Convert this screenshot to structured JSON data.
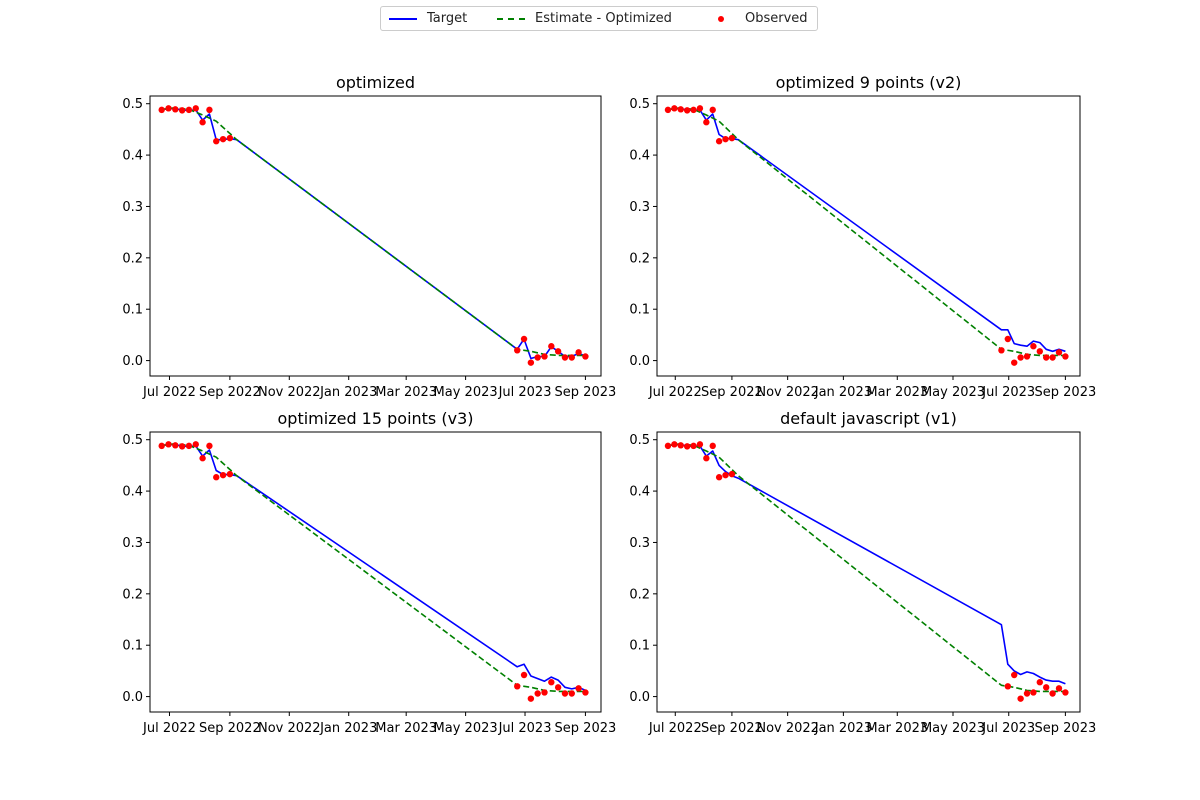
{
  "legend": {
    "target_label": "Target",
    "estimate_label": "Estimate - Optimized",
    "observed_label": "Observed"
  },
  "colors": {
    "target": "#0000ff",
    "estimate": "#008000",
    "observed": "#ff0000"
  },
  "chart_data": [
    {
      "type": "line",
      "title": "optimized",
      "x_tick_labels": [
        "Jul 2022",
        "Sep 2022",
        "Nov 2022",
        "Jan 2023",
        "Mar 2023",
        "May 2023",
        "Jul 2023",
        "Sep 2023"
      ],
      "y_tick_labels": [
        "0.0",
        "0.1",
        "0.2",
        "0.3",
        "0.4",
        "0.5"
      ],
      "ylim": [
        -0.03,
        0.515
      ],
      "grid": false,
      "legend_position": "top-center",
      "series": [
        {
          "name": "Target",
          "style": "solid",
          "color": "#0000ff",
          "x": [
            "2022-06-23",
            "2022-06-30",
            "2022-07-07",
            "2022-07-14",
            "2022-07-21",
            "2022-07-28",
            "2022-08-04",
            "2022-08-11",
            "2022-08-18",
            "2022-08-25",
            "2022-09-01",
            "2022-09-08",
            "2023-06-23",
            "2023-06-30",
            "2023-07-07",
            "2023-07-14",
            "2023-07-21",
            "2023-07-28",
            "2023-08-04",
            "2023-08-11",
            "2023-08-18",
            "2023-08-25",
            "2023-09-01"
          ],
          "y": [
            0.488,
            0.491,
            0.49,
            0.488,
            0.487,
            0.488,
            0.468,
            0.48,
            0.43,
            0.43,
            0.432,
            0.43,
            0.022,
            0.042,
            0.004,
            0.008,
            0.008,
            0.027,
            0.018,
            0.008,
            0.008,
            0.014,
            0.009
          ]
        },
        {
          "name": "Estimate - Optimized",
          "style": "dashed",
          "color": "#008000",
          "x": [
            "2022-06-23",
            "2022-07-07",
            "2022-07-21",
            "2022-08-04",
            "2022-08-18",
            "2022-09-01",
            "2022-09-08",
            "2023-06-23",
            "2023-07-07",
            "2023-07-21",
            "2023-08-04",
            "2023-08-18",
            "2023-09-01"
          ],
          "y": [
            0.489,
            0.492,
            0.489,
            0.478,
            0.466,
            0.442,
            0.43,
            0.022,
            0.018,
            0.012,
            0.01,
            0.01,
            0.01
          ]
        },
        {
          "name": "Observed",
          "style": "points",
          "color": "#ff0000",
          "x": [
            "2022-06-23",
            "2022-06-30",
            "2022-07-07",
            "2022-07-14",
            "2022-07-21",
            "2022-07-28",
            "2022-08-04",
            "2022-08-11",
            "2022-08-18",
            "2022-08-25",
            "2022-09-01",
            "2023-06-23",
            "2023-06-30",
            "2023-07-07",
            "2023-07-14",
            "2023-07-21",
            "2023-07-28",
            "2023-08-04",
            "2023-08-11",
            "2023-08-18",
            "2023-08-25",
            "2023-09-01"
          ],
          "y": [
            0.488,
            0.491,
            0.489,
            0.487,
            0.488,
            0.491,
            0.464,
            0.488,
            0.427,
            0.431,
            0.433,
            0.02,
            0.042,
            -0.004,
            0.006,
            0.008,
            0.028,
            0.018,
            0.006,
            0.006,
            0.016,
            0.008
          ]
        }
      ]
    },
    {
      "type": "line",
      "title": "optimized 9 points (v2)",
      "x_tick_labels": [
        "Jul 2022",
        "Sep 2022",
        "Nov 2022",
        "Jan 2023",
        "Mar 2023",
        "May 2023",
        "Jul 2023",
        "Sep 2023"
      ],
      "y_tick_labels": [
        "0.0",
        "0.1",
        "0.2",
        "0.3",
        "0.4",
        "0.5"
      ],
      "ylim": [
        -0.03,
        0.515
      ],
      "grid": false,
      "series": [
        {
          "name": "Target",
          "style": "solid",
          "color": "#0000ff",
          "x": [
            "2022-06-23",
            "2022-06-30",
            "2022-07-07",
            "2022-07-14",
            "2022-07-21",
            "2022-07-28",
            "2022-08-04",
            "2022-08-11",
            "2022-08-18",
            "2022-08-25",
            "2022-09-01",
            "2022-09-08",
            "2023-06-23",
            "2023-06-30",
            "2023-07-07",
            "2023-07-14",
            "2023-07-21",
            "2023-07-28",
            "2023-08-04",
            "2023-08-11",
            "2023-08-18",
            "2023-08-25",
            "2023-09-01"
          ],
          "y": [
            0.488,
            0.491,
            0.49,
            0.488,
            0.487,
            0.488,
            0.468,
            0.48,
            0.44,
            0.432,
            0.432,
            0.43,
            0.06,
            0.06,
            0.033,
            0.03,
            0.028,
            0.038,
            0.035,
            0.022,
            0.018,
            0.022,
            0.018
          ]
        },
        {
          "name": "Estimate - Optimized",
          "style": "dashed",
          "color": "#008000",
          "x": [
            "2022-06-23",
            "2022-07-07",
            "2022-07-21",
            "2022-08-04",
            "2022-08-18",
            "2022-09-01",
            "2022-09-08",
            "2023-06-23",
            "2023-07-07",
            "2023-07-21",
            "2023-08-04",
            "2023-08-18",
            "2023-09-01"
          ],
          "y": [
            0.489,
            0.492,
            0.489,
            0.478,
            0.466,
            0.442,
            0.43,
            0.022,
            0.018,
            0.012,
            0.01,
            0.01,
            0.01
          ]
        },
        {
          "name": "Observed",
          "style": "points",
          "color": "#ff0000",
          "x": [
            "2022-06-23",
            "2022-06-30",
            "2022-07-07",
            "2022-07-14",
            "2022-07-21",
            "2022-07-28",
            "2022-08-04",
            "2022-08-11",
            "2022-08-18",
            "2022-08-25",
            "2022-09-01",
            "2023-06-23",
            "2023-06-30",
            "2023-07-07",
            "2023-07-14",
            "2023-07-21",
            "2023-07-28",
            "2023-08-04",
            "2023-08-11",
            "2023-08-18",
            "2023-08-25",
            "2023-09-01"
          ],
          "y": [
            0.488,
            0.491,
            0.489,
            0.487,
            0.488,
            0.491,
            0.464,
            0.488,
            0.427,
            0.431,
            0.433,
            0.02,
            0.042,
            -0.004,
            0.006,
            0.008,
            0.028,
            0.018,
            0.006,
            0.006,
            0.016,
            0.008
          ]
        }
      ]
    },
    {
      "type": "line",
      "title": "optimized 15 points (v3)",
      "x_tick_labels": [
        "Jul 2022",
        "Sep 2022",
        "Nov 2022",
        "Jan 2023",
        "Mar 2023",
        "May 2023",
        "Jul 2023",
        "Sep 2023"
      ],
      "y_tick_labels": [
        "0.0",
        "0.1",
        "0.2",
        "0.3",
        "0.4",
        "0.5"
      ],
      "ylim": [
        -0.03,
        0.515
      ],
      "grid": false,
      "series": [
        {
          "name": "Target",
          "style": "solid",
          "color": "#0000ff",
          "x": [
            "2022-06-23",
            "2022-06-30",
            "2022-07-07",
            "2022-07-14",
            "2022-07-21",
            "2022-07-28",
            "2022-08-04",
            "2022-08-11",
            "2022-08-18",
            "2022-08-25",
            "2022-09-01",
            "2022-09-08",
            "2023-06-23",
            "2023-06-30",
            "2023-07-07",
            "2023-07-14",
            "2023-07-21",
            "2023-07-28",
            "2023-08-04",
            "2023-08-11",
            "2023-08-18",
            "2023-08-25",
            "2023-09-01"
          ],
          "y": [
            0.488,
            0.491,
            0.49,
            0.488,
            0.487,
            0.488,
            0.468,
            0.48,
            0.44,
            0.432,
            0.432,
            0.43,
            0.058,
            0.063,
            0.04,
            0.035,
            0.03,
            0.038,
            0.032,
            0.018,
            0.015,
            0.018,
            0.012
          ]
        },
        {
          "name": "Estimate - Optimized",
          "style": "dashed",
          "color": "#008000",
          "x": [
            "2022-06-23",
            "2022-07-07",
            "2022-07-21",
            "2022-08-04",
            "2022-08-18",
            "2022-09-01",
            "2022-09-08",
            "2023-06-23",
            "2023-07-07",
            "2023-07-21",
            "2023-08-04",
            "2023-08-18",
            "2023-09-01"
          ],
          "y": [
            0.489,
            0.492,
            0.489,
            0.478,
            0.466,
            0.442,
            0.43,
            0.022,
            0.018,
            0.012,
            0.01,
            0.01,
            0.01
          ]
        },
        {
          "name": "Observed",
          "style": "points",
          "color": "#ff0000",
          "x": [
            "2022-06-23",
            "2022-06-30",
            "2022-07-07",
            "2022-07-14",
            "2022-07-21",
            "2022-07-28",
            "2022-08-04",
            "2022-08-11",
            "2022-08-18",
            "2022-08-25",
            "2022-09-01",
            "2023-06-23",
            "2023-06-30",
            "2023-07-07",
            "2023-07-14",
            "2023-07-21",
            "2023-07-28",
            "2023-08-04",
            "2023-08-11",
            "2023-08-18",
            "2023-08-25",
            "2023-09-01"
          ],
          "y": [
            0.488,
            0.491,
            0.489,
            0.487,
            0.488,
            0.491,
            0.464,
            0.488,
            0.427,
            0.431,
            0.433,
            0.02,
            0.042,
            -0.004,
            0.006,
            0.008,
            0.028,
            0.018,
            0.006,
            0.006,
            0.016,
            0.008
          ]
        }
      ]
    },
    {
      "type": "line",
      "title": "default javascript (v1)",
      "x_tick_labels": [
        "Jul 2022",
        "Sep 2022",
        "Nov 2022",
        "Jan 2023",
        "Mar 2023",
        "May 2023",
        "Jul 2023",
        "Sep 2023"
      ],
      "y_tick_labels": [
        "0.0",
        "0.1",
        "0.2",
        "0.3",
        "0.4",
        "0.5"
      ],
      "ylim": [
        -0.03,
        0.515
      ],
      "grid": false,
      "series": [
        {
          "name": "Target",
          "style": "solid",
          "color": "#0000ff",
          "x": [
            "2022-06-23",
            "2022-06-30",
            "2022-07-07",
            "2022-07-14",
            "2022-07-21",
            "2022-07-28",
            "2022-08-04",
            "2022-08-11",
            "2022-08-18",
            "2022-08-25",
            "2022-09-01",
            "2022-09-08",
            "2023-06-23",
            "2023-06-30",
            "2023-07-07",
            "2023-07-14",
            "2023-07-21",
            "2023-07-28",
            "2023-08-04",
            "2023-08-11",
            "2023-08-18",
            "2023-08-25",
            "2023-09-01"
          ],
          "y": [
            0.488,
            0.491,
            0.49,
            0.488,
            0.487,
            0.488,
            0.468,
            0.478,
            0.45,
            0.438,
            0.43,
            0.425,
            0.14,
            0.063,
            0.05,
            0.043,
            0.048,
            0.045,
            0.038,
            0.032,
            0.03,
            0.03,
            0.025
          ]
        },
        {
          "name": "Estimate - Optimized",
          "style": "dashed",
          "color": "#008000",
          "x": [
            "2022-06-23",
            "2022-07-07",
            "2022-07-21",
            "2022-08-04",
            "2022-08-18",
            "2022-09-01",
            "2022-09-08",
            "2023-06-23",
            "2023-07-07",
            "2023-07-21",
            "2023-08-04",
            "2023-08-18",
            "2023-09-01"
          ],
          "y": [
            0.489,
            0.492,
            0.489,
            0.478,
            0.466,
            0.442,
            0.43,
            0.022,
            0.018,
            0.012,
            0.01,
            0.01,
            0.01
          ]
        },
        {
          "name": "Observed",
          "style": "points",
          "color": "#ff0000",
          "x": [
            "2022-06-23",
            "2022-06-30",
            "2022-07-07",
            "2022-07-14",
            "2022-07-21",
            "2022-07-28",
            "2022-08-04",
            "2022-08-11",
            "2022-08-18",
            "2022-08-25",
            "2022-09-01",
            "2023-06-30",
            "2023-07-07",
            "2023-07-14",
            "2023-07-21",
            "2023-07-28",
            "2023-08-04",
            "2023-08-11",
            "2023-08-18",
            "2023-08-25",
            "2023-09-01"
          ],
          "y": [
            0.488,
            0.491,
            0.489,
            0.487,
            0.488,
            0.491,
            0.464,
            0.488,
            0.427,
            0.431,
            0.433,
            0.02,
            0.042,
            -0.004,
            0.006,
            0.008,
            0.028,
            0.018,
            0.006,
            0.016,
            0.008
          ]
        }
      ]
    }
  ]
}
